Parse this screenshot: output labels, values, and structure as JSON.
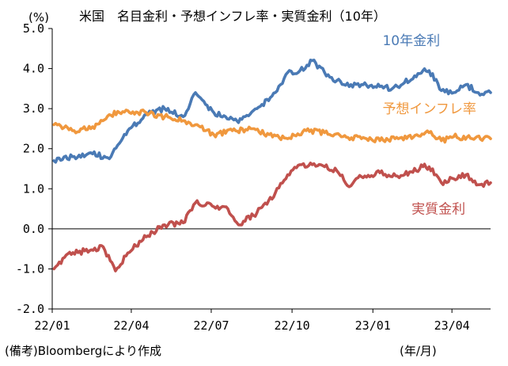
{
  "source_note": "(備考)Bloombergにより作成",
  "x_unit": "(年/月)",
  "chart_data": {
    "type": "line",
    "title": "米国　名目金利・予想インフレ率・実質金利（10年）",
    "ylabel": "(%)",
    "xlabel": "",
    "ylim": [
      -2.0,
      5.0
    ],
    "xlim": [
      "2022-01-01",
      "2023-05-15"
    ],
    "y_ticks": [
      "-2.0",
      "-1.0",
      "0.0",
      "1.0",
      "2.0",
      "3.0",
      "4.0",
      "5.0"
    ],
    "x_ticks": [
      {
        "label": "22/01",
        "date": "2022-01-01"
      },
      {
        "label": "22/04",
        "date": "2022-04-01"
      },
      {
        "label": "22/07",
        "date": "2022-07-01"
      },
      {
        "label": "22/10",
        "date": "2022-10-01"
      },
      {
        "label": "23/01",
        "date": "2023-01-01"
      },
      {
        "label": "23/04",
        "date": "2023-04-01"
      }
    ],
    "grid": false,
    "series": [
      {
        "name": "10年金利",
        "color": "#4a7ab5",
        "x": [
          "2022-01-03",
          "2022-01-24",
          "2022-02-14",
          "2022-03-07",
          "2022-03-28",
          "2022-04-18",
          "2022-05-09",
          "2022-05-30",
          "2022-06-13",
          "2022-07-04",
          "2022-07-25",
          "2022-08-01",
          "2022-08-22",
          "2022-09-12",
          "2022-09-26",
          "2022-10-10",
          "2022-10-24",
          "2022-11-07",
          "2022-11-21",
          "2022-12-05",
          "2022-12-19",
          "2023-01-09",
          "2023-01-23",
          "2023-02-06",
          "2023-02-27",
          "2023-03-06",
          "2023-03-20",
          "2023-04-03",
          "2023-04-17",
          "2023-05-01",
          "2023-05-15"
        ],
        "y": [
          1.7,
          1.8,
          1.9,
          1.75,
          2.45,
          2.85,
          3.0,
          2.8,
          3.4,
          2.9,
          2.75,
          2.65,
          3.0,
          3.4,
          3.9,
          3.95,
          4.2,
          3.9,
          3.7,
          3.55,
          3.6,
          3.55,
          3.5,
          3.65,
          3.95,
          3.95,
          3.45,
          3.4,
          3.6,
          3.4,
          3.4
        ]
      },
      {
        "name": "予想インフレ率",
        "color": "#f0983e",
        "x": [
          "2022-01-03",
          "2022-01-24",
          "2022-02-14",
          "2022-03-07",
          "2022-03-28",
          "2022-04-18",
          "2022-05-09",
          "2022-05-30",
          "2022-06-13",
          "2022-07-04",
          "2022-07-25",
          "2022-08-15",
          "2022-09-05",
          "2022-09-26",
          "2022-10-17",
          "2022-11-07",
          "2022-11-28",
          "2022-12-19",
          "2023-01-09",
          "2023-01-30",
          "2023-02-20",
          "2023-03-06",
          "2023-03-20",
          "2023-04-03",
          "2023-04-24",
          "2023-05-15"
        ],
        "y": [
          2.6,
          2.45,
          2.5,
          2.85,
          2.95,
          2.9,
          2.8,
          2.7,
          2.6,
          2.35,
          2.45,
          2.5,
          2.35,
          2.25,
          2.45,
          2.4,
          2.3,
          2.25,
          2.2,
          2.25,
          2.35,
          2.4,
          2.2,
          2.3,
          2.25,
          2.25
        ]
      },
      {
        "name": "実質金利",
        "color": "#c0504d",
        "x": [
          "2022-01-03",
          "2022-01-17",
          "2022-02-07",
          "2022-02-28",
          "2022-03-14",
          "2022-03-28",
          "2022-04-18",
          "2022-05-09",
          "2022-05-30",
          "2022-06-13",
          "2022-07-04",
          "2022-07-18",
          "2022-08-01",
          "2022-08-22",
          "2022-09-12",
          "2022-09-26",
          "2022-10-10",
          "2022-10-24",
          "2022-11-07",
          "2022-11-21",
          "2022-12-05",
          "2022-12-19",
          "2023-01-09",
          "2023-01-23",
          "2023-02-06",
          "2023-02-27",
          "2023-03-06",
          "2023-03-20",
          "2023-04-03",
          "2023-04-17",
          "2023-05-01",
          "2023-05-15"
        ],
        "y": [
          -1.0,
          -0.65,
          -0.55,
          -0.45,
          -1.05,
          -0.6,
          -0.2,
          0.1,
          0.15,
          0.65,
          0.55,
          0.55,
          0.1,
          0.4,
          0.9,
          1.35,
          1.6,
          1.6,
          1.55,
          1.45,
          1.05,
          1.3,
          1.4,
          1.3,
          1.35,
          1.55,
          1.55,
          1.15,
          1.25,
          1.35,
          1.1,
          1.15
        ]
      }
    ],
    "labels": [
      {
        "text": "10年金利",
        "color": "#4a7ab5",
        "data_x": "2023-01-12",
        "data_y": 4.58
      },
      {
        "text": "予想インフレ率",
        "color": "#f0983e",
        "data_x": "2023-01-12",
        "data_y": 2.88
      },
      {
        "text": "実質金利",
        "color": "#c0504d",
        "data_x": "2023-02-14",
        "data_y": 0.38
      }
    ]
  }
}
